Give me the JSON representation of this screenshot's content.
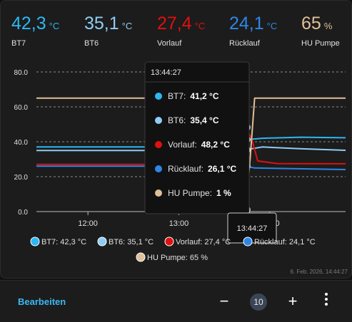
{
  "header": {
    "stats": [
      {
        "value": "42,3",
        "unit": "°C",
        "label": "BT7",
        "color": "#2bb8f2"
      },
      {
        "value": "35,1",
        "unit": "°C",
        "label": "BT6",
        "color": "#8fcdf3"
      },
      {
        "value": "27,4",
        "unit": "°C",
        "label": "Vorlauf",
        "color": "#e01010"
      },
      {
        "value": "24,1",
        "unit": "°C",
        "label": "Rücklauf",
        "color": "#2d86e6"
      },
      {
        "value": "65",
        "unit": "%",
        "label": "HU Pumpe",
        "color": "#e0c097"
      }
    ]
  },
  "chart_data": {
    "type": "line",
    "y_ticks": [
      "80.0",
      "60.0",
      "40.0",
      "20.0",
      "0.0"
    ],
    "ylim": [
      0,
      80
    ],
    "x_ticks": [
      "12:00",
      "13:00",
      "14:00"
    ],
    "x_range": [
      "11:26",
      "14:50"
    ],
    "grid": true,
    "series": [
      {
        "name": "BT7",
        "color": "#2bb8f2",
        "points": [
          [
            "11:26",
            37.0
          ],
          [
            "13:40",
            37.0
          ],
          [
            "13:44",
            41.2
          ],
          [
            "13:55",
            42.0
          ],
          [
            "14:20",
            42.6
          ],
          [
            "14:50",
            42.3
          ]
        ]
      },
      {
        "name": "BT6",
        "color": "#8fcdf3",
        "points": [
          [
            "11:26",
            35.0
          ],
          [
            "13:40",
            35.0
          ],
          [
            "13:44",
            35.4
          ],
          [
            "13:55",
            37.0
          ],
          [
            "14:20",
            36.0
          ],
          [
            "14:50",
            35.1
          ]
        ]
      },
      {
        "name": "Vorlauf",
        "color": "#e01010",
        "points": [
          [
            "11:26",
            27.0
          ],
          [
            "13:40",
            27.0
          ],
          [
            "13:44",
            48.2
          ],
          [
            "13:48",
            42.0
          ],
          [
            "13:52",
            29.0
          ],
          [
            "14:05",
            27.5
          ],
          [
            "14:50",
            27.4
          ]
        ]
      },
      {
        "name": "Rücklauf",
        "color": "#2d86e6",
        "points": [
          [
            "11:26",
            26.0
          ],
          [
            "13:40",
            26.0
          ],
          [
            "13:44",
            26.1
          ],
          [
            "13:50",
            25.0
          ],
          [
            "14:50",
            24.1
          ]
        ]
      },
      {
        "name": "HU Pumpe",
        "color": "#e0c097",
        "points": [
          [
            "11:26",
            65
          ],
          [
            "13:38",
            65
          ],
          [
            "13:39",
            0
          ],
          [
            "13:44",
            1
          ],
          [
            "13:47",
            30
          ],
          [
            "13:50",
            65
          ],
          [
            "14:50",
            65
          ]
        ]
      }
    ],
    "legend": [
      {
        "text": "BT7: 42,3 °C",
        "color": "#2bb8f2"
      },
      {
        "text": "BT6: 35,1 °C",
        "color": "#8fcdf3"
      },
      {
        "text": "Vorlauf: 27,4 °C",
        "color": "#e01010"
      },
      {
        "text": "Rücklauf: 24,1 °C",
        "color": "#2d86e6"
      },
      {
        "text": "HU Pumpe: 65 %",
        "color": "#e0c097"
      }
    ],
    "tooltip": {
      "time": "13:44:27",
      "cursor_time": "13:44",
      "items": [
        {
          "label": "BT7:",
          "value": "41,2 °C",
          "color": "#2bb8f2"
        },
        {
          "label": "BT6:",
          "value": "35,4 °C",
          "color": "#8fcdf3"
        },
        {
          "label": "Vorlauf:",
          "value": "48,2 °C",
          "color": "#e01010"
        },
        {
          "label": "Rücklauf:",
          "value": "26,1 °C",
          "color": "#2d86e6"
        },
        {
          "label": "HU Pumpe:",
          "value": "1 %",
          "color": "#e0c097"
        }
      ]
    },
    "axis_pointer_label": "13:44:27",
    "timestamp": "6. Feb. 2026, 14:44:27"
  },
  "footer": {
    "edit_label": "Bearbeiten",
    "minus_label": "−",
    "count": "10",
    "plus_label": "+"
  }
}
